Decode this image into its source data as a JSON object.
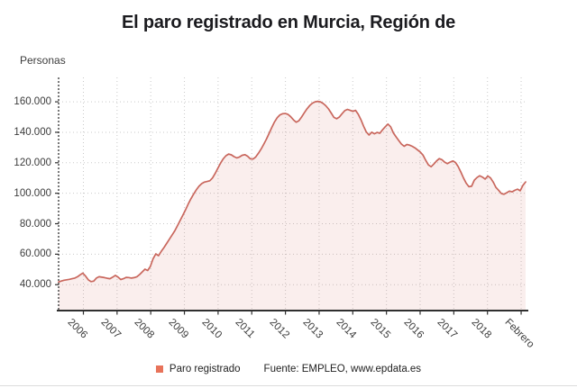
{
  "page": {
    "title": "El paro registrado en Murcia, Región de"
  },
  "chart": {
    "y_axis_unit": "Personas",
    "legend_label": "Paro registrado",
    "source": "Fuente: EMPLEO, www.epdata.es"
  },
  "colors": {
    "line": "#c9675d",
    "fill": "rgba(205,104,92,0.11)",
    "legend_swatch": "#e8735a",
    "grid": "#c9c9c9",
    "axis": "#2f2f2f",
    "tick_text": "#3c3c3c",
    "title_text": "#1b1b1f"
  },
  "chart_data": {
    "type": "area",
    "title": "El paro registrado en Murcia, Región de",
    "ylabel": "Personas",
    "frequency": "mensual",
    "grid": "dotted",
    "legend_position": "bottom",
    "x_tick_labels": [
      "2006",
      "2007",
      "2008",
      "2009",
      "2010",
      "2011",
      "2012",
      "2013",
      "2014",
      "2015",
      "2016",
      "2017",
      "2018",
      "Febrero"
    ],
    "y_ticks": [
      {
        "label": "40.000",
        "value": 40000
      },
      {
        "label": "60.000",
        "value": 60000
      },
      {
        "label": "80.000",
        "value": 80000
      },
      {
        "label": "100.000",
        "value": 100000
      },
      {
        "label": "120.000",
        "value": 120000
      },
      {
        "label": "140.000",
        "value": 140000
      },
      {
        "label": "160.000",
        "value": 160000
      }
    ],
    "ylim": [
      23000,
      176000
    ],
    "series": [
      {
        "name": "Paro registrado",
        "unit": "personas",
        "values": [
          41800,
          42400,
          42900,
          43200,
          43500,
          43900,
          44300,
          45200,
          46500,
          47600,
          45600,
          43200,
          42000,
          42300,
          44300,
          45200,
          44900,
          44600,
          44200,
          43900,
          44900,
          46100,
          45000,
          43400,
          43900,
          44800,
          44700,
          44300,
          44600,
          45200,
          46600,
          48400,
          50200,
          49300,
          52000,
          57000,
          60200,
          59000,
          61800,
          64300,
          67000,
          69800,
          72500,
          75300,
          78500,
          82000,
          85500,
          89000,
          92800,
          96300,
          99400,
          102200,
          104600,
          106300,
          107300,
          107700,
          108200,
          110000,
          113000,
          116500,
          119800,
          122600,
          124600,
          125700,
          125200,
          124000,
          123200,
          123800,
          124900,
          125300,
          124300,
          122600,
          122400,
          123800,
          126200,
          129000,
          132200,
          135600,
          139300,
          143200,
          146800,
          149600,
          151400,
          152200,
          152300,
          151700,
          150200,
          148200,
          146600,
          147600,
          150000,
          152800,
          155400,
          157500,
          159100,
          160000,
          160300,
          160000,
          158900,
          157400,
          155300,
          152600,
          149800,
          148900,
          150000,
          152200,
          154200,
          155000,
          154400,
          153700,
          154400,
          151800,
          148200,
          144000,
          140200,
          138200,
          140000,
          139000,
          139900,
          139400,
          141600,
          143600,
          145400,
          143600,
          139600,
          137000,
          134600,
          132200,
          130800,
          132000,
          131600,
          130800,
          129800,
          128400,
          127000,
          125000,
          121600,
          118600,
          117400,
          119200,
          121200,
          122700,
          122000,
          120400,
          119400,
          120400,
          121200,
          120200,
          117600,
          114000,
          110000,
          106600,
          104300,
          104600,
          108600,
          110300,
          111500,
          110600,
          109300,
          111300,
          110000,
          107300,
          103800,
          101900,
          99800,
          99300,
          100300,
          101400,
          100900,
          101900,
          102700,
          101600,
          105200,
          107400
        ]
      }
    ]
  }
}
